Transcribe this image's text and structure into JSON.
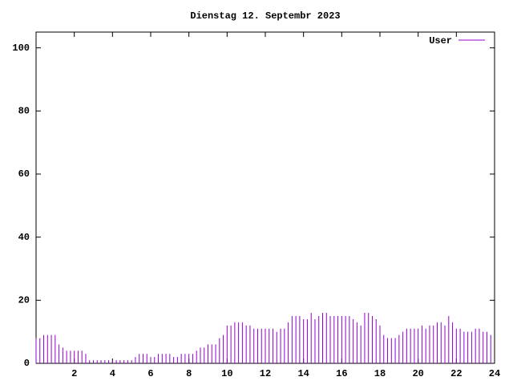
{
  "chart_data": {
    "type": "impulse",
    "title": "Dienstag 12. Septembr 2023",
    "x": [
      0,
      0.2,
      0.4,
      0.6,
      0.8,
      1,
      1.2,
      1.4,
      1.6,
      1.8,
      2,
      2.2,
      2.4,
      2.6,
      2.8,
      3,
      3.2,
      3.4,
      3.6,
      3.8,
      4,
      4.2,
      4.4,
      4.6,
      4.8,
      5,
      5.2,
      5.4,
      5.6,
      5.8,
      6,
      6.2,
      6.4,
      6.6,
      6.8,
      7,
      7.2,
      7.4,
      7.6,
      7.8,
      8,
      8.2,
      8.4,
      8.6,
      8.8,
      9,
      9.2,
      9.4,
      9.6,
      9.8,
      10,
      10.2,
      10.4,
      10.6,
      10.8,
      11,
      11.2,
      11.4,
      11.6,
      11.8,
      12,
      12.2,
      12.4,
      12.6,
      12.8,
      13,
      13.2,
      13.4,
      13.6,
      13.8,
      14,
      14.2,
      14.4,
      14.6,
      14.8,
      15,
      15.2,
      15.4,
      15.6,
      15.8,
      16,
      16.2,
      16.4,
      16.6,
      16.8,
      17,
      17.2,
      17.4,
      17.6,
      17.8,
      18,
      18.2,
      18.4,
      18.6,
      18.8,
      19,
      19.2,
      19.4,
      19.6,
      19.8,
      20,
      20.2,
      20.4,
      20.6,
      20.8,
      21,
      21.2,
      21.4,
      21.6,
      21.8,
      22,
      22.2,
      22.4,
      22.6,
      22.8,
      23,
      23.2,
      23.4,
      23.6,
      23.8
    ],
    "series": [
      {
        "name": "User",
        "color": "#9400d3",
        "values": [
          8,
          8,
          9,
          9,
          9,
          9,
          6,
          5,
          4,
          4,
          4,
          4,
          4,
          3,
          1,
          1,
          1,
          1,
          1,
          1,
          1,
          1,
          1,
          1,
          1,
          1,
          2,
          3,
          3,
          3,
          2,
          2,
          3,
          3,
          3,
          3,
          2,
          2,
          3,
          3,
          3,
          3,
          4,
          5,
          5,
          6,
          6,
          6,
          8,
          9,
          12,
          12,
          13,
          13,
          13,
          12,
          12,
          11,
          11,
          11,
          11,
          11,
          11,
          10,
          11,
          11,
          13,
          15,
          15,
          15,
          14,
          14,
          16,
          14,
          15,
          16,
          16,
          15,
          15,
          15,
          15,
          15,
          15,
          14,
          13,
          12,
          16,
          16,
          15,
          14,
          12,
          9,
          8,
          8,
          8,
          9,
          10,
          11,
          11,
          11,
          11,
          12,
          11,
          12,
          12,
          13,
          13,
          12,
          15,
          13,
          11,
          11,
          10,
          10,
          10,
          11,
          11,
          10,
          10,
          9
        ]
      }
    ],
    "xlim": [
      0,
      24
    ],
    "xticks": [
      2,
      4,
      6,
      8,
      10,
      12,
      14,
      16,
      18,
      20,
      22,
      24
    ],
    "ylim": [
      0,
      105
    ],
    "yticks": [
      0,
      20,
      40,
      60,
      80,
      100
    ]
  }
}
